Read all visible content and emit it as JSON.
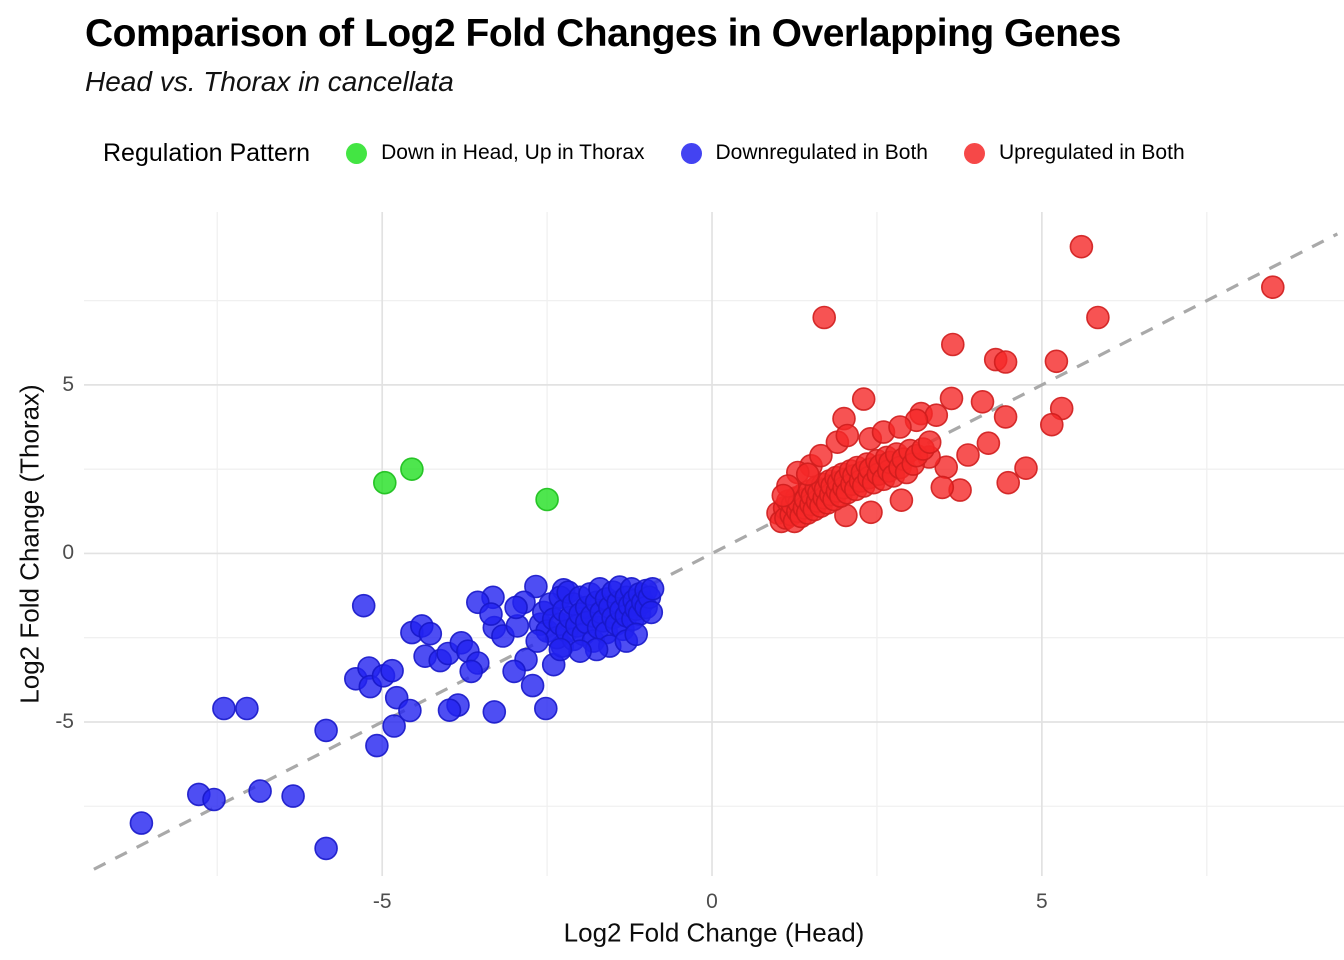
{
  "header": {
    "title": "Comparison of Log2 Fold Changes in Overlapping Genes",
    "subtitle": "Head vs. Thorax in cancellata"
  },
  "legend": {
    "title": "Regulation Pattern",
    "items": [
      {
        "label": "Down in Head, Up in Thorax",
        "color": "#22e022"
      },
      {
        "label": "Downregulated in Both",
        "color": "#2222f0"
      },
      {
        "label": "Upregulated in Both",
        "color": "#f52828"
      }
    ]
  },
  "axes": {
    "x_label": "Log2 Fold Change (Head)",
    "y_label": "Log2 Fold Change (Thorax)"
  },
  "chart_data": {
    "type": "scatter",
    "title": "Comparison of Log2 Fold Changes in Overlapping Genes",
    "subtitle": "Head vs. Thorax in cancellata",
    "xlabel": "Log2 Fold Change (Head)",
    "ylabel": "Log2 Fold Change (Thorax)",
    "xlim": [
      -9.52,
      9.58
    ],
    "ylim": [
      -9.57,
      10.13
    ],
    "x_ticks": [
      -5,
      0,
      5
    ],
    "y_ticks": [
      -5,
      0,
      5
    ],
    "x_minor": [
      -7.5,
      -2.5,
      2.5,
      7.5
    ],
    "y_minor": [
      -7.5,
      -2.5,
      2.5,
      7.5
    ],
    "grid": "on",
    "legend_position": "top",
    "identity_line": {
      "style": "dashed",
      "color": "#a9a9a9",
      "slope": 1,
      "intercept": 0
    },
    "series": [
      {
        "name": "Down in Head, Up in Thorax",
        "color": "#22e022",
        "stroke": "#1bbf1b",
        "points": [
          [
            -4.96,
            2.1
          ],
          [
            -4.55,
            2.5
          ],
          [
            -2.5,
            1.6
          ]
        ]
      },
      {
        "name": "Downregulated in Both",
        "color": "#2222f0",
        "stroke": "#1717c9",
        "points": [
          [
            -8.65,
            -8.0
          ],
          [
            -7.78,
            -7.15
          ],
          [
            -7.55,
            -7.3
          ],
          [
            -6.85,
            -7.05
          ],
          [
            -6.35,
            -7.2
          ],
          [
            -5.85,
            -8.75
          ],
          [
            -7.4,
            -4.6
          ],
          [
            -7.05,
            -4.6
          ],
          [
            -5.85,
            -5.25
          ],
          [
            -5.08,
            -5.7
          ],
          [
            -4.82,
            -5.12
          ],
          [
            -5.4,
            -3.72
          ],
          [
            -5.2,
            -3.4
          ],
          [
            -5.18,
            -3.95
          ],
          [
            -4.98,
            -3.63
          ],
          [
            -4.85,
            -3.48
          ],
          [
            -4.78,
            -4.28
          ],
          [
            -4.58,
            -4.66
          ],
          [
            -5.28,
            -1.55
          ],
          [
            -4.55,
            -2.35
          ],
          [
            -4.4,
            -2.15
          ],
          [
            -4.27,
            -2.38
          ],
          [
            -4.35,
            -3.05
          ],
          [
            -4.12,
            -3.18
          ],
          [
            -4.0,
            -2.97
          ],
          [
            -3.8,
            -2.65
          ],
          [
            -3.7,
            -2.9
          ],
          [
            -3.55,
            -3.25
          ],
          [
            -3.85,
            -4.5
          ],
          [
            -3.98,
            -4.65
          ],
          [
            -3.3,
            -4.7
          ],
          [
            -2.52,
            -4.6
          ],
          [
            -2.72,
            -3.92
          ],
          [
            -2.82,
            -3.15
          ],
          [
            -3.3,
            -2.2
          ],
          [
            -3.17,
            -2.45
          ],
          [
            -2.95,
            -2.15
          ],
          [
            -3.32,
            -1.3
          ],
          [
            -3.55,
            -1.45
          ],
          [
            -3.35,
            -1.8
          ],
          [
            -3.0,
            -3.5
          ],
          [
            -3.65,
            -3.5
          ],
          [
            -2.4,
            -3.3
          ],
          [
            -2.27,
            -2.75
          ],
          [
            -2.67,
            -0.98
          ],
          [
            -2.25,
            -1.08
          ],
          [
            -2.85,
            -1.45
          ],
          [
            -2.97,
            -1.6
          ],
          [
            -2.6,
            -2.1
          ],
          [
            -2.55,
            -1.75
          ],
          [
            -2.5,
            -2.3
          ],
          [
            -2.45,
            -1.5
          ],
          [
            -2.4,
            -1.95
          ],
          [
            -2.35,
            -2.5
          ],
          [
            -2.3,
            -1.3
          ],
          [
            -2.3,
            -2.1
          ],
          [
            -2.25,
            -1.7
          ],
          [
            -2.2,
            -2.3
          ],
          [
            -2.18,
            -1.15
          ],
          [
            -2.15,
            -1.9
          ],
          [
            -2.1,
            -2.55
          ],
          [
            -2.1,
            -1.5
          ],
          [
            -2.05,
            -2.15
          ],
          [
            -2.0,
            -1.3
          ],
          [
            -2.0,
            -1.8
          ],
          [
            -1.95,
            -2.4
          ],
          [
            -1.9,
            -1.6
          ],
          [
            -1.9,
            -2.05
          ],
          [
            -1.85,
            -1.2
          ],
          [
            -1.82,
            -1.85
          ],
          [
            -1.8,
            -2.6
          ],
          [
            -1.75,
            -1.45
          ],
          [
            -1.72,
            -2.2
          ],
          [
            -1.7,
            -1.05
          ],
          [
            -1.68,
            -1.75
          ],
          [
            -1.65,
            -2.0
          ],
          [
            -1.6,
            -1.35
          ],
          [
            -1.6,
            -2.35
          ],
          [
            -1.55,
            -1.6
          ],
          [
            -1.5,
            -1.15
          ],
          [
            -1.5,
            -1.9
          ],
          [
            -1.45,
            -2.1
          ],
          [
            -1.42,
            -1.45
          ],
          [
            -1.4,
            -1.0
          ],
          [
            -1.38,
            -1.7
          ],
          [
            -1.35,
            -2.25
          ],
          [
            -1.3,
            -1.3
          ],
          [
            -1.3,
            -1.85
          ],
          [
            -1.25,
            -1.55
          ],
          [
            -1.22,
            -1.05
          ],
          [
            -1.2,
            -1.95
          ],
          [
            -1.18,
            -1.4
          ],
          [
            -1.15,
            -1.65
          ],
          [
            -1.1,
            -1.2
          ],
          [
            -1.1,
            -1.8
          ],
          [
            -1.05,
            -1.45
          ],
          [
            -1.0,
            -1.1
          ],
          [
            -1.0,
            -1.6
          ],
          [
            -0.95,
            -1.3
          ],
          [
            -0.92,
            -1.75
          ],
          [
            -0.9,
            -1.05
          ],
          [
            -1.55,
            -2.75
          ],
          [
            -1.75,
            -2.85
          ],
          [
            -2.0,
            -2.9
          ],
          [
            -1.3,
            -2.6
          ],
          [
            -1.15,
            -2.4
          ],
          [
            -2.3,
            -2.85
          ],
          [
            -2.65,
            -2.6
          ]
        ]
      },
      {
        "name": "Upregulated in Both",
        "color": "#f52828",
        "stroke": "#cf1d1d",
        "points": [
          [
            5.6,
            9.1
          ],
          [
            8.5,
            7.9
          ],
          [
            5.85,
            7.0
          ],
          [
            1.7,
            7.0
          ],
          [
            3.65,
            6.2
          ],
          [
            4.3,
            5.75
          ],
          [
            4.45,
            5.68
          ],
          [
            5.22,
            5.7
          ],
          [
            2.3,
            4.58
          ],
          [
            3.63,
            4.6
          ],
          [
            4.1,
            4.5
          ],
          [
            5.3,
            4.3
          ],
          [
            5.15,
            3.82
          ],
          [
            4.45,
            4.05
          ],
          [
            3.17,
            4.15
          ],
          [
            2.0,
            4.0
          ],
          [
            3.4,
            4.1
          ],
          [
            4.76,
            2.53
          ],
          [
            4.49,
            2.1
          ],
          [
            4.19,
            3.27
          ],
          [
            3.88,
            2.92
          ],
          [
            3.55,
            2.56
          ],
          [
            3.76,
            1.88
          ],
          [
            3.49,
            1.96
          ],
          [
            3.29,
            2.86
          ],
          [
            3.1,
            3.95
          ],
          [
            2.87,
            1.58
          ],
          [
            2.41,
            1.22
          ],
          [
            2.03,
            1.13
          ],
          [
            1.0,
            1.2
          ],
          [
            1.05,
            0.95
          ],
          [
            1.1,
            1.35
          ],
          [
            1.12,
            1.05
          ],
          [
            1.15,
            1.55
          ],
          [
            1.2,
            1.15
          ],
          [
            1.22,
            1.45
          ],
          [
            1.25,
            0.95
          ],
          [
            1.28,
            1.65
          ],
          [
            1.3,
            1.25
          ],
          [
            1.32,
            1.5
          ],
          [
            1.35,
            1.1
          ],
          [
            1.38,
            1.75
          ],
          [
            1.4,
            1.35
          ],
          [
            1.42,
            1.6
          ],
          [
            1.45,
            1.2
          ],
          [
            1.48,
            1.85
          ],
          [
            1.5,
            1.45
          ],
          [
            1.52,
            1.7
          ],
          [
            1.55,
            1.3
          ],
          [
            1.58,
            1.95
          ],
          [
            1.6,
            1.55
          ],
          [
            1.62,
            1.8
          ],
          [
            1.65,
            1.4
          ],
          [
            1.68,
            2.05
          ],
          [
            1.7,
            1.65
          ],
          [
            1.72,
            1.9
          ],
          [
            1.75,
            1.5
          ],
          [
            1.78,
            2.15
          ],
          [
            1.8,
            1.75
          ],
          [
            1.82,
            2.0
          ],
          [
            1.85,
            1.6
          ],
          [
            1.88,
            2.25
          ],
          [
            1.9,
            1.85
          ],
          [
            1.92,
            2.1
          ],
          [
            1.95,
            1.7
          ],
          [
            1.98,
            2.35
          ],
          [
            2.0,
            1.95
          ],
          [
            2.02,
            2.2
          ],
          [
            2.05,
            1.8
          ],
          [
            2.1,
            2.45
          ],
          [
            2.12,
            2.05
          ],
          [
            2.15,
            2.3
          ],
          [
            2.18,
            1.9
          ],
          [
            2.2,
            2.55
          ],
          [
            2.25,
            2.15
          ],
          [
            2.28,
            2.4
          ],
          [
            2.3,
            2.0
          ],
          [
            2.35,
            2.65
          ],
          [
            2.38,
            2.25
          ],
          [
            2.4,
            2.5
          ],
          [
            2.45,
            2.1
          ],
          [
            2.5,
            2.75
          ],
          [
            2.52,
            2.35
          ],
          [
            2.55,
            2.6
          ],
          [
            2.6,
            2.2
          ],
          [
            2.65,
            2.85
          ],
          [
            2.68,
            2.45
          ],
          [
            2.7,
            2.7
          ],
          [
            2.75,
            2.3
          ],
          [
            2.8,
            2.95
          ],
          [
            2.85,
            2.55
          ],
          [
            2.9,
            2.8
          ],
          [
            2.95,
            2.4
          ],
          [
            3.0,
            3.05
          ],
          [
            3.05,
            2.65
          ],
          [
            3.1,
            2.9
          ],
          [
            3.2,
            3.1
          ],
          [
            3.3,
            3.3
          ],
          [
            1.5,
            2.6
          ],
          [
            1.65,
            2.9
          ],
          [
            1.9,
            3.3
          ],
          [
            2.05,
            3.5
          ],
          [
            2.4,
            3.4
          ],
          [
            2.6,
            3.6
          ],
          [
            2.85,
            3.75
          ],
          [
            1.3,
            2.4
          ],
          [
            1.15,
            2.0
          ],
          [
            1.45,
            2.35
          ],
          [
            1.08,
            1.72
          ]
        ]
      }
    ]
  }
}
